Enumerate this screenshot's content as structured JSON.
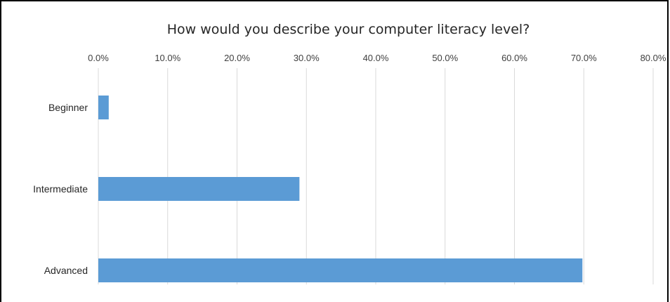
{
  "chart_data": {
    "type": "bar",
    "orientation": "horizontal",
    "title": "How would you describe your computer literacy level?",
    "xlabel": "",
    "ylabel": "",
    "categories": [
      "Beginner",
      "Intermediate",
      "Advanced"
    ],
    "values": [
      1.5,
      29.0,
      69.8
    ],
    "xlim": [
      0,
      80
    ],
    "tick_values": [
      0,
      10,
      20,
      30,
      40,
      50,
      60,
      70,
      80
    ],
    "tick_labels": [
      "0.0%",
      "10.0%",
      "20.0%",
      "30.0%",
      "40.0%",
      "50.0%",
      "60.0%",
      "70.0%",
      "80.0%"
    ],
    "grid": true,
    "bar_color": "#5b9bd5"
  }
}
